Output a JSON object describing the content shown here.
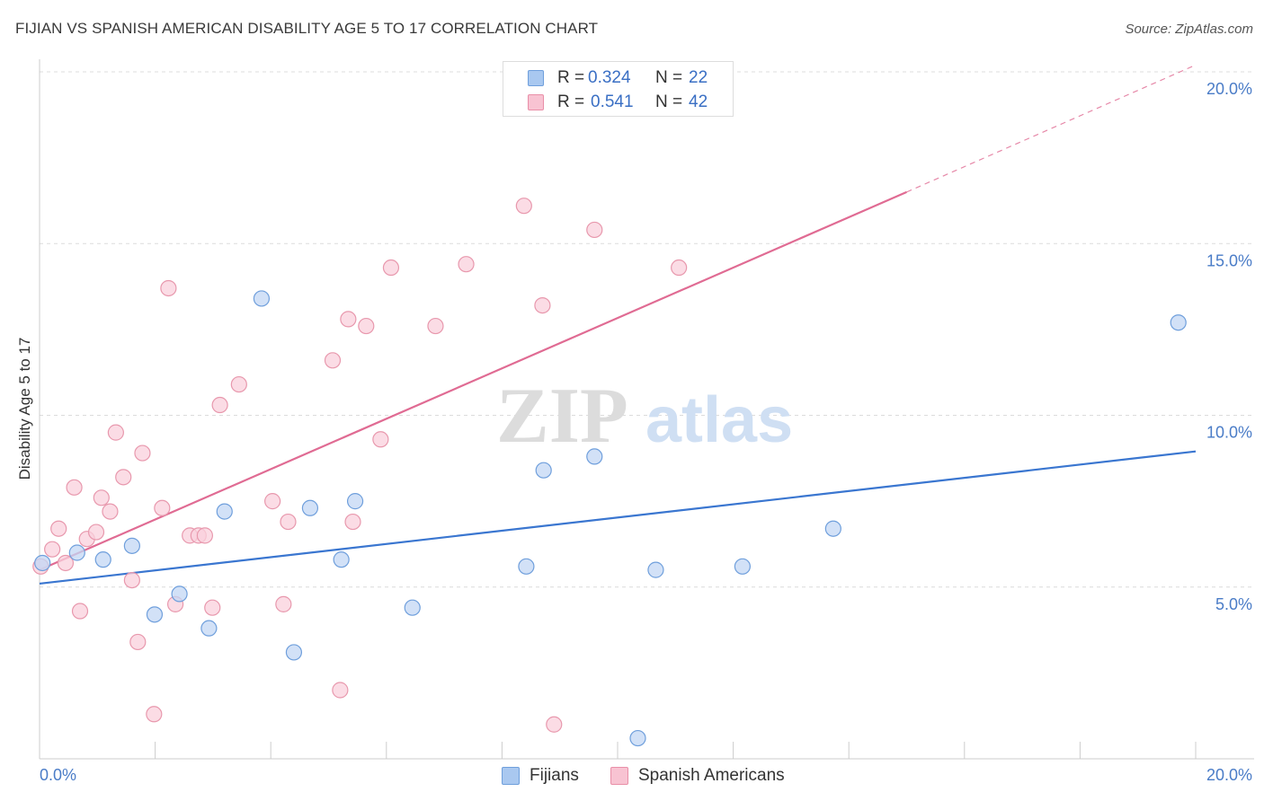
{
  "title": "FIJIAN VS SPANISH AMERICAN DISABILITY AGE 5 TO 17 CORRELATION CHART",
  "source": "Source: ZipAtlas.com",
  "watermark": {
    "zip": "ZIP",
    "atlas": "atlas"
  },
  "legend": {
    "r_label": "R =",
    "n_label": "N =",
    "rows": [
      {
        "r": "0.324",
        "n": "22",
        "color": "#a9c8f0",
        "border": "#6f9fdc"
      },
      {
        "r": "0.541",
        "n": "42",
        "color": "#f8c3d2",
        "border": "#e98fa8"
      }
    ]
  },
  "colors": {
    "fijians_fill": "#c3d7f4",
    "fijians_stroke": "#6f9fdc",
    "fijians_line": "#3a76d0",
    "spanish_fill": "#fad0dc",
    "spanish_stroke": "#e898ad",
    "spanish_line": "#e06b93",
    "tick": "#4a7cc7",
    "grid": "#dcdcdc"
  },
  "chart_data": {
    "type": "scatter",
    "title": "FIJIAN VS SPANISH AMERICAN DISABILITY AGE 5 TO 17 CORRELATION CHART",
    "xlabel": "",
    "ylabel": "Disability Age 5 to 17",
    "xlim": [
      0,
      20
    ],
    "ylim": [
      0,
      20
    ],
    "x_tick_labels": [
      "0.0%",
      "20.0%"
    ],
    "y_ticks": [
      5,
      10,
      15,
      20
    ],
    "y_tick_labels": [
      "5.0%",
      "10.0%",
      "15.0%",
      "20.0%"
    ],
    "grid": true,
    "legend_position": "top-center",
    "series": [
      {
        "name": "Fijians",
        "r": 0.324,
        "n": 22,
        "points": [
          [
            0.05,
            5.7
          ],
          [
            0.65,
            6.0
          ],
          [
            1.1,
            5.8
          ],
          [
            1.6,
            6.2
          ],
          [
            1.99,
            4.2
          ],
          [
            2.42,
            4.8
          ],
          [
            2.93,
            3.8
          ],
          [
            3.2,
            7.2
          ],
          [
            3.84,
            13.4
          ],
          [
            4.4,
            3.1
          ],
          [
            4.68,
            7.3
          ],
          [
            5.22,
            5.8
          ],
          [
            5.46,
            7.5
          ],
          [
            6.45,
            4.4
          ],
          [
            8.42,
            5.6
          ],
          [
            8.72,
            8.4
          ],
          [
            9.6,
            8.8
          ],
          [
            10.35,
            0.6
          ],
          [
            10.66,
            5.5
          ],
          [
            12.16,
            5.6
          ],
          [
            13.73,
            6.7
          ],
          [
            19.7,
            12.7
          ]
        ],
        "trend": {
          "x": [
            0,
            20
          ],
          "y": [
            5.1,
            8.95
          ]
        }
      },
      {
        "name": "Spanish Americans",
        "r": 0.541,
        "n": 42,
        "points": [
          [
            0.02,
            5.6
          ],
          [
            0.22,
            6.1
          ],
          [
            0.33,
            6.7
          ],
          [
            0.45,
            5.7
          ],
          [
            0.6,
            7.9
          ],
          [
            0.7,
            4.3
          ],
          [
            0.82,
            6.4
          ],
          [
            0.98,
            6.6
          ],
          [
            1.07,
            7.6
          ],
          [
            1.22,
            7.2
          ],
          [
            1.32,
            9.5
          ],
          [
            1.45,
            8.2
          ],
          [
            1.6,
            5.2
          ],
          [
            1.7,
            3.4
          ],
          [
            1.78,
            8.9
          ],
          [
            1.98,
            1.3
          ],
          [
            2.12,
            7.3
          ],
          [
            2.23,
            13.7
          ],
          [
            2.35,
            4.5
          ],
          [
            2.6,
            6.5
          ],
          [
            2.75,
            6.5
          ],
          [
            2.86,
            6.5
          ],
          [
            2.99,
            4.4
          ],
          [
            3.12,
            10.3
          ],
          [
            3.45,
            10.9
          ],
          [
            4.03,
            7.5
          ],
          [
            4.22,
            4.5
          ],
          [
            4.3,
            6.9
          ],
          [
            5.07,
            11.6
          ],
          [
            5.2,
            2.0
          ],
          [
            5.34,
            12.8
          ],
          [
            5.42,
            6.9
          ],
          [
            5.65,
            12.6
          ],
          [
            5.9,
            9.3
          ],
          [
            6.08,
            14.3
          ],
          [
            6.85,
            12.6
          ],
          [
            7.38,
            14.4
          ],
          [
            8.38,
            16.1
          ],
          [
            8.9,
            1.0
          ],
          [
            8.7,
            13.2
          ],
          [
            9.6,
            15.4
          ],
          [
            11.06,
            14.3
          ]
        ],
        "trend": {
          "x": [
            0,
            15
          ],
          "y": [
            5.5,
            16.5
          ],
          "dashed_extension": {
            "x": [
              15,
              20
            ],
            "y": [
              16.5,
              20.2
            ]
          }
        }
      }
    ]
  }
}
